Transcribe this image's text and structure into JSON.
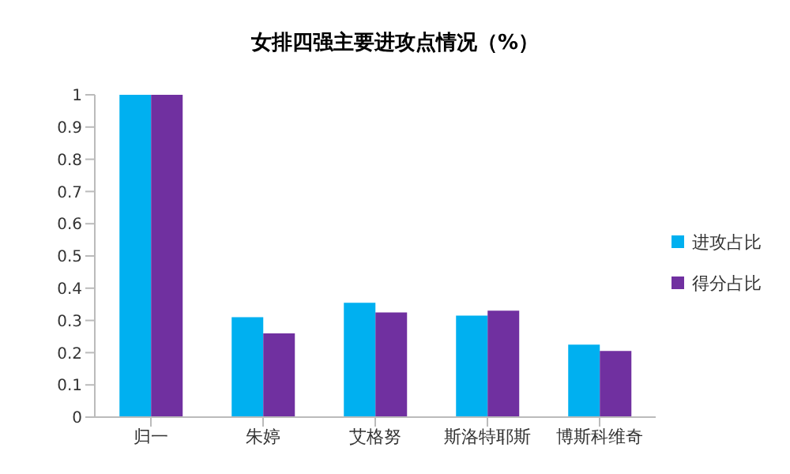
{
  "chart_data": {
    "type": "bar",
    "title": "女排四强主要进攻点情况（%）",
    "categories": [
      "归一",
      "朱婷",
      "艾格努",
      "斯洛特耶斯",
      "博斯科维奇"
    ],
    "series": [
      {
        "name": "进攻占比",
        "color": "#00b0f0",
        "values": [
          1,
          0.31,
          0.355,
          0.315,
          0.225
        ]
      },
      {
        "name": "得分占比",
        "color": "#7030a0",
        "values": [
          1,
          0.26,
          0.325,
          0.33,
          0.205
        ]
      }
    ],
    "ylim": [
      0,
      1
    ],
    "yticks": [
      0,
      0.1,
      0.2,
      0.3,
      0.4,
      0.5,
      0.6,
      0.7,
      0.8,
      0.9,
      1
    ],
    "grid": false,
    "legend": "right"
  }
}
